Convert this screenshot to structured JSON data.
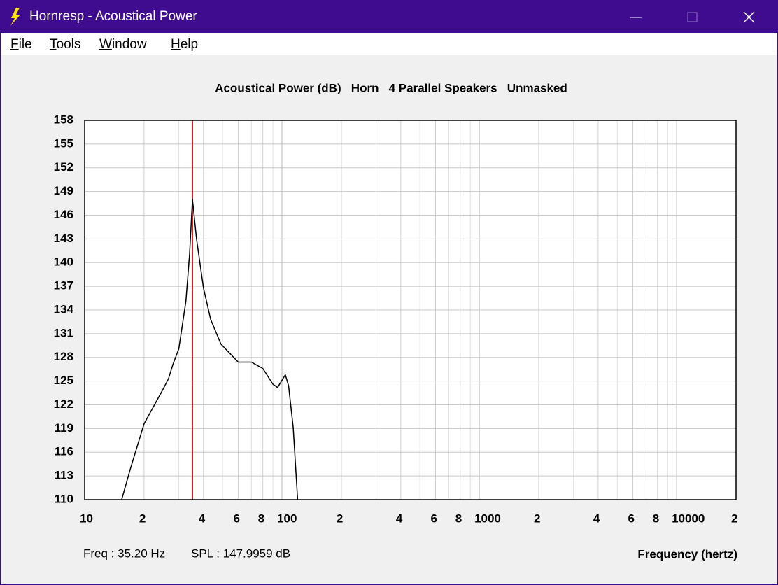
{
  "window": {
    "title": "Hornresp - Acoustical Power"
  },
  "menu": [
    "File",
    "Tools",
    "Window",
    "Help"
  ],
  "chart_data": {
    "type": "line",
    "title": "Acoustical Power (dB)   Horn   4 Parallel Speakers   Unmasked",
    "xlabel": "Frequency (hertz)",
    "log_x": true,
    "grid": true,
    "xlim": [
      10,
      20000
    ],
    "ylim": [
      110,
      158
    ],
    "xticks": [
      10,
      {
        "value": 20,
        "label": "2"
      },
      {
        "value": 40,
        "label": "4"
      },
      {
        "value": 60,
        "label": "6"
      },
      {
        "value": 80,
        "label": "8"
      },
      100,
      {
        "value": 200,
        "label": "2"
      },
      {
        "value": 400,
        "label": "4"
      },
      {
        "value": 600,
        "label": "6"
      },
      {
        "value": 800,
        "label": "8"
      },
      1000,
      {
        "value": 2000,
        "label": "2"
      },
      {
        "value": 4000,
        "label": "4"
      },
      {
        "value": 6000,
        "label": "6"
      },
      {
        "value": 8000,
        "label": "8"
      },
      10000,
      {
        "value": 20000,
        "label": "2"
      }
    ],
    "minor_xgrid": [
      30,
      50,
      70,
      90,
      300,
      500,
      700,
      900,
      3000,
      5000,
      7000,
      9000
    ],
    "yticks": [
      110,
      113,
      116,
      119,
      122,
      125,
      128,
      131,
      134,
      137,
      140,
      143,
      146,
      149,
      152,
      155,
      158
    ],
    "x": [
      15.4,
      17,
      20,
      25,
      26.6,
      28,
      30,
      32.6,
      34,
      35.2,
      36.9,
      40,
      43.5,
      49,
      60,
      70,
      80,
      90,
      95,
      104,
      108,
      114,
      120
    ],
    "series": [
      {
        "color": "#000000",
        "values": [
          110,
          113.8,
          119.6,
          124,
          125.3,
          127.1,
          129.1,
          135.1,
          141,
          148,
          143,
          136.8,
          132.8,
          129.7,
          127.4,
          127.4,
          126.6,
          124.6,
          124.2,
          125.8,
          124.4,
          119.1,
          110
        ]
      }
    ],
    "cursor": {
      "x": 35.2,
      "color": "#e00000",
      "freq_label": "Freq : 35.20 Hz",
      "spl_label": "SPL : 147.9959 dB"
    }
  }
}
